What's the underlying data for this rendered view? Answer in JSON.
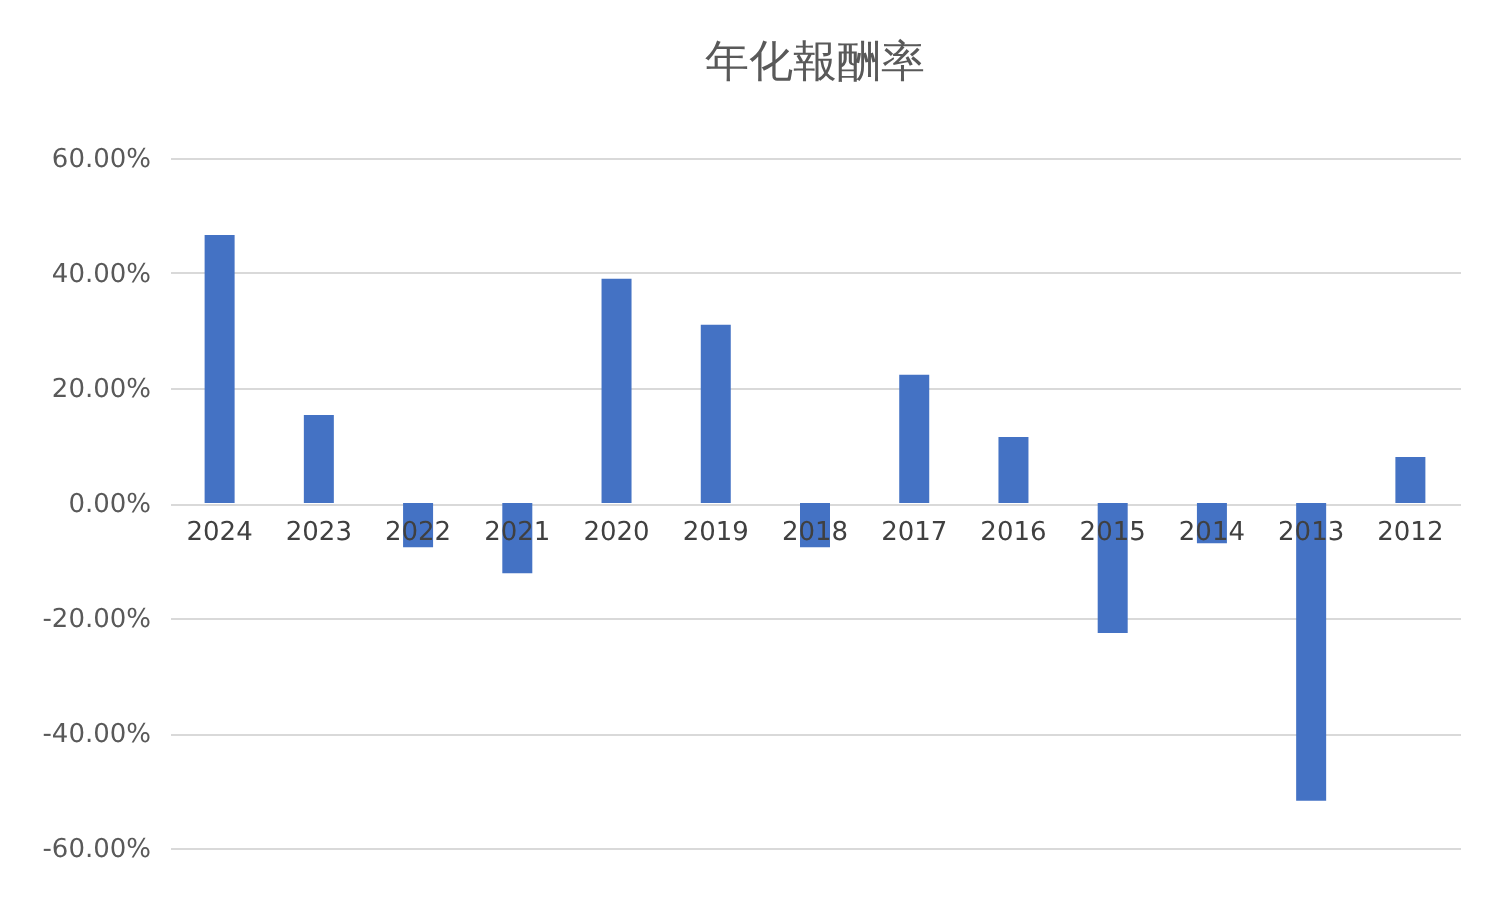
{
  "chart_data": {
    "type": "bar",
    "title": "年化報酬率",
    "categories": [
      "2024",
      "2023",
      "2022",
      "2021",
      "2020",
      "2019",
      "2018",
      "2017",
      "2016",
      "2015",
      "2014",
      "2013",
      "2012"
    ],
    "values": [
      46.6,
      15.3,
      -7.7,
      -12.2,
      39.0,
      31.0,
      -7.7,
      22.3,
      11.5,
      -22.6,
      -7.0,
      -51.8,
      8.0
    ],
    "color": "#4472c4",
    "ylim": [
      -60,
      60
    ],
    "yticks": [
      {
        "value": -60,
        "label": "-60.00%"
      },
      {
        "value": -40,
        "label": "-40.00%"
      },
      {
        "value": -20,
        "label": "-20.00%"
      },
      {
        "value": 0,
        "label": "0.00%"
      },
      {
        "value": 20,
        "label": "20.00%"
      },
      {
        "value": 40,
        "label": "40.00%"
      },
      {
        "value": 60,
        "label": "60.00%"
      }
    ],
    "grid": "y"
  }
}
